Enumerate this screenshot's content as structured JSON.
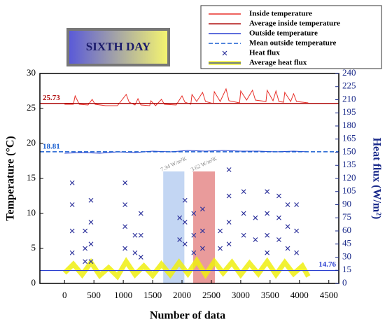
{
  "chart_data": {
    "type": "line",
    "title": "SIXTH DAY",
    "xlabel": "Number of data",
    "ylabel": "Temperature (°C)",
    "y2label": "Heat flux (W/m²)",
    "xlim": [
      -420,
      4670
    ],
    "xticks": [
      0,
      500,
      1000,
      1500,
      2000,
      2500,
      3000,
      3500,
      4000,
      4500
    ],
    "ylim": [
      0,
      30
    ],
    "yticks": [
      0,
      5,
      10,
      15,
      20,
      25,
      30
    ],
    "y2lim": [
      0,
      240
    ],
    "y2ticks": [
      0,
      15,
      30,
      45,
      60,
      75,
      90,
      105,
      120,
      135,
      150,
      165,
      180,
      195,
      210,
      225,
      240
    ],
    "series": [
      {
        "name": "Inside temperature",
        "color": "#e8302a",
        "style": "line",
        "x": [
          0,
          150,
          180,
          250,
          400,
          470,
          520,
          700,
          900,
          1050,
          1100,
          1200,
          1250,
          1300,
          1450,
          1470,
          1550,
          1650,
          1700,
          1900,
          2000,
          2050,
          2150,
          2170,
          2250,
          2350,
          2400,
          2530,
          2550,
          2650,
          2750,
          2800,
          2980,
          3000,
          3100,
          3200,
          3250,
          3430,
          3450,
          3550,
          3600,
          3650,
          3730,
          3750,
          3850,
          3900,
          3950,
          4150
        ],
        "values": [
          25.6,
          25.6,
          26.8,
          25.6,
          25.5,
          26.3,
          25.6,
          25.4,
          25.4,
          27.0,
          25.9,
          25.5,
          26.4,
          25.5,
          25.4,
          26.1,
          25.4,
          26.3,
          25.6,
          25.5,
          26.8,
          25.9,
          25.6,
          27.0,
          26.0,
          27.3,
          26.0,
          25.7,
          27.4,
          26.0,
          27.8,
          26.1,
          25.8,
          27.5,
          26.2,
          27.6,
          26.2,
          26.0,
          27.6,
          26.1,
          27.5,
          26.0,
          25.9,
          27.3,
          26.0,
          27.1,
          26.0,
          25.8
        ]
      },
      {
        "name": "Average inside temperature",
        "color": "#b01010",
        "style": "line",
        "value": 25.73
      },
      {
        "name": "Outside temperature",
        "color": "#2a3fd0",
        "style": "line",
        "x": [
          0,
          300,
          600,
          900,
          1200,
          1500,
          1800,
          2100,
          2400,
          2700,
          3000,
          3300,
          3600,
          3900,
          4150
        ],
        "values": [
          18.6,
          18.7,
          18.6,
          18.8,
          18.7,
          18.9,
          18.8,
          19.0,
          18.9,
          19.0,
          18.9,
          18.9,
          18.8,
          18.9,
          18.8
        ]
      },
      {
        "name": "Mean outside temperature",
        "color": "#1a5fd0",
        "style": "dash",
        "value": 18.81
      },
      {
        "name": "Heat flux",
        "color": "#2a2f9a",
        "style": "marker",
        "axis": "y2",
        "x": [
          130,
          130,
          130,
          130,
          350,
          350,
          350,
          450,
          450,
          450,
          450,
          1030,
          1030,
          1030,
          1030,
          1200,
          1200,
          1300,
          1300,
          1300,
          1960,
          1960,
          2050,
          2050,
          2050,
          2200,
          2200,
          2200,
          2350,
          2350,
          2350,
          2650,
          2650,
          2800,
          2800,
          2800,
          2800,
          3050,
          3050,
          3050,
          3250,
          3250,
          3450,
          3450,
          3450,
          3450,
          3650,
          3650,
          3650,
          3800,
          3800,
          3800,
          3950,
          3950,
          3950
        ],
        "values": [
          115,
          90,
          60,
          35,
          60,
          40,
          25,
          95,
          70,
          45,
          25,
          115,
          90,
          65,
          40,
          55,
          35,
          80,
          55,
          30,
          75,
          50,
          95,
          70,
          45,
          80,
          55,
          35,
          85,
          60,
          40,
          60,
          40,
          130,
          100,
          70,
          45,
          105,
          80,
          55,
          75,
          50,
          105,
          80,
          55,
          35,
          100,
          75,
          50,
          90,
          65,
          40,
          90,
          60,
          35
        ]
      },
      {
        "name": "Average heat flux",
        "color": "#eeee10",
        "line_color": "#2a3fd0",
        "style": "band",
        "axis": "y2",
        "value": 14.76,
        "x": [
          0,
          150,
          300,
          450,
          600,
          750,
          900,
          1050,
          1200,
          1350,
          1500,
          1650,
          1800,
          1950,
          2100,
          2250,
          2400,
          2550,
          2700,
          2850,
          3000,
          3150,
          3300,
          3450,
          3600,
          3750,
          3900,
          4050,
          4150
        ],
        "values": [
          12,
          22,
          10,
          24,
          9,
          18,
          8,
          25,
          10,
          20,
          9,
          22,
          10,
          24,
          11,
          26,
          10,
          25,
          12,
          24,
          10,
          23,
          11,
          25,
          10,
          24,
          11,
          20,
          8
        ]
      }
    ],
    "highlights": [
      {
        "x": [
          1680,
          2040
        ],
        "y": 16,
        "color": "#a9c4ee",
        "label": "7.34 W/m²K"
      },
      {
        "x": [
          2190,
          2560
        ],
        "y": 16,
        "color": "#e07070",
        "label": "3.62 W/m²K"
      }
    ]
  }
}
